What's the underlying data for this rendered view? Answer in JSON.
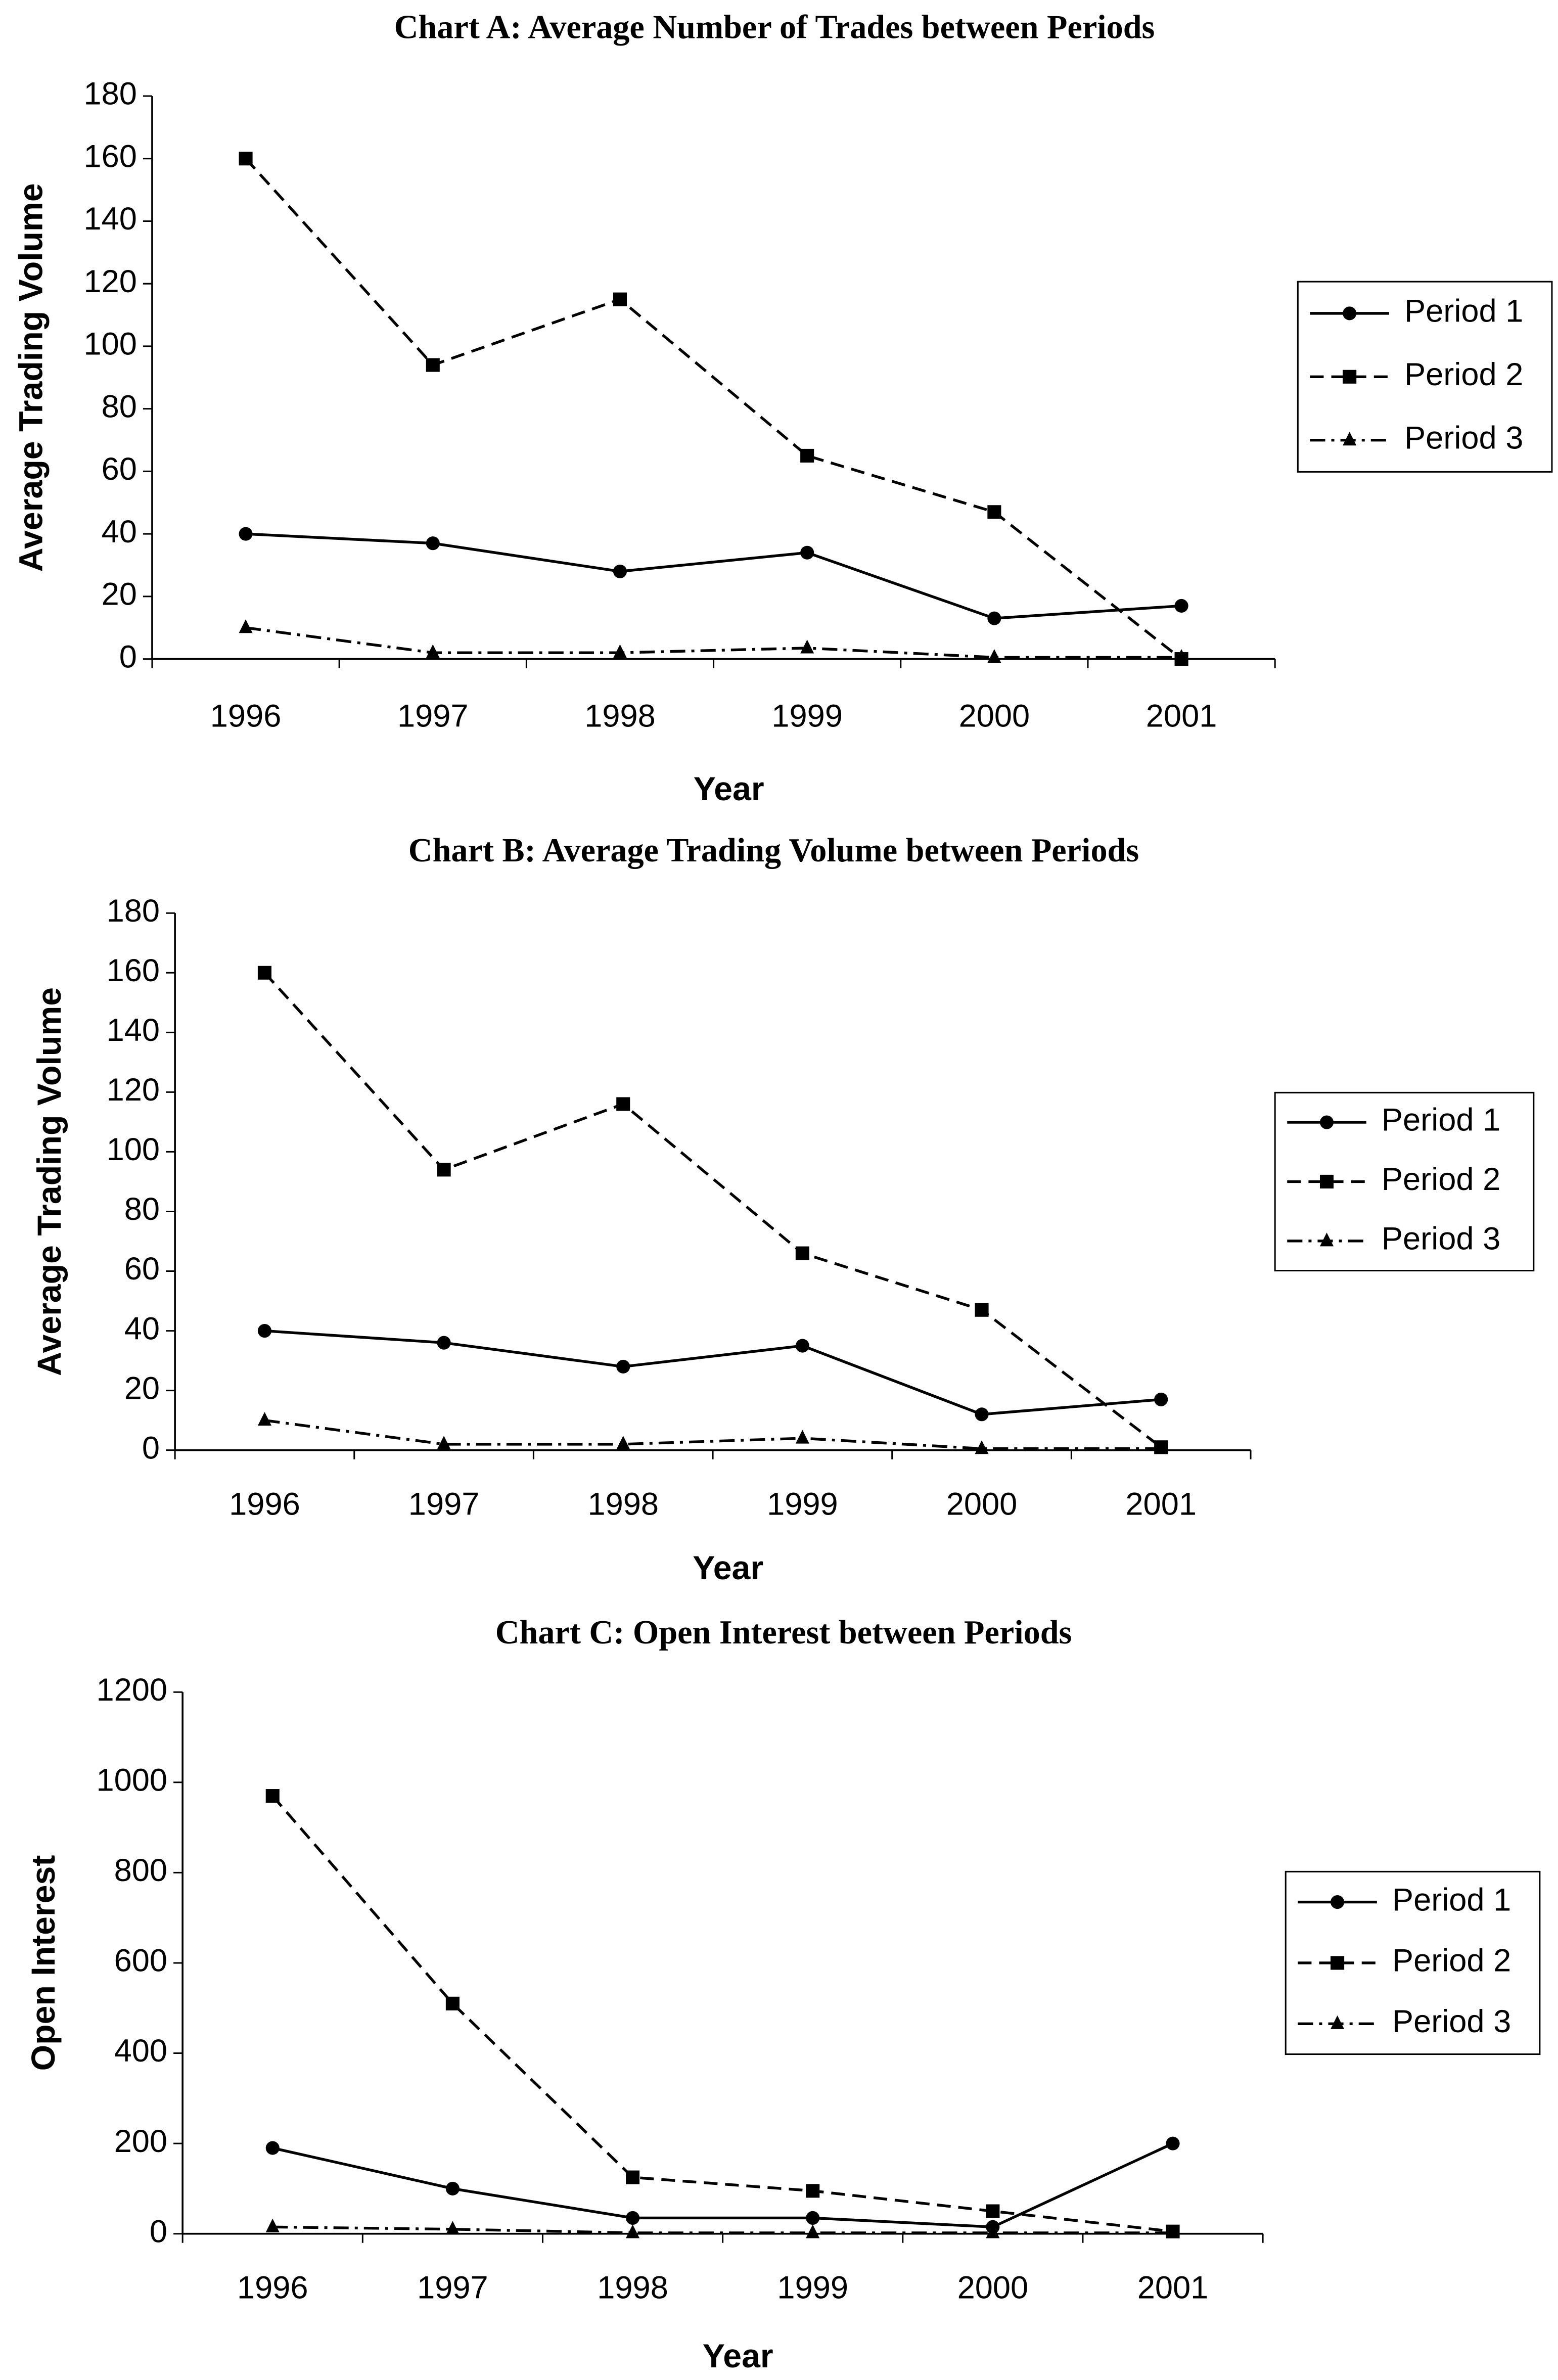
{
  "chart_data": [
    {
      "type": "line",
      "title": "Chart A: Average Number of Trades between Periods",
      "x_label": "Year",
      "y_label": "Average Trading Volume",
      "categories": [
        "1996",
        "1997",
        "1998",
        "1999",
        "2000",
        "2001"
      ],
      "series": [
        {
          "name": "Period 1",
          "color": "#000000",
          "line_style": "solid",
          "marker": "circle",
          "values": [
            40,
            37,
            28,
            34,
            13,
            17
          ]
        },
        {
          "name": "Period 2",
          "color": "#000000",
          "line_style": "dashed",
          "marker": "square",
          "values": [
            160,
            94,
            115,
            65,
            47,
            0
          ]
        },
        {
          "name": "Period 3",
          "color": "#000000",
          "line_style": "dashdot",
          "marker": "triangle",
          "values": [
            10,
            2,
            2,
            3.5,
            0.5,
            0.5
          ]
        }
      ],
      "ylim": [
        0,
        180
      ],
      "yticks": [
        0,
        20,
        40,
        60,
        80,
        100,
        120,
        140,
        160,
        180
      ],
      "legend": "right",
      "grid": false
    },
    {
      "type": "line",
      "title": "Chart B: Average Trading Volume between Periods",
      "x_label": "Year",
      "y_label": "Average Trading Volume",
      "categories": [
        "1996",
        "1997",
        "1998",
        "1999",
        "2000",
        "2001"
      ],
      "series": [
        {
          "name": "Period 1",
          "color": "#000000",
          "line_style": "solid",
          "marker": "circle",
          "values": [
            40,
            36,
            28,
            35,
            12,
            17
          ]
        },
        {
          "name": "Period 2",
          "color": "#000000",
          "line_style": "dashed",
          "marker": "square",
          "values": [
            160,
            94,
            116,
            66,
            47,
            1
          ]
        },
        {
          "name": "Period 3",
          "color": "#000000",
          "line_style": "dashdot",
          "marker": "triangle",
          "values": [
            10,
            2,
            2,
            4,
            0.5,
            0.5
          ]
        }
      ],
      "ylim": [
        0,
        180
      ],
      "yticks": [
        0,
        20,
        40,
        60,
        80,
        100,
        120,
        140,
        160,
        180
      ],
      "legend": "right",
      "grid": false
    },
    {
      "type": "line",
      "title": "Chart C: Open Interest between Periods",
      "x_label": "Year",
      "y_label": "Open Interest",
      "categories": [
        "1996",
        "1997",
        "1998",
        "1999",
        "2000",
        "2001"
      ],
      "series": [
        {
          "name": "Period 1",
          "color": "#000000",
          "line_style": "solid",
          "marker": "circle",
          "values": [
            190,
            100,
            35,
            35,
            15,
            200
          ]
        },
        {
          "name": "Period 2",
          "color": "#000000",
          "line_style": "dashed",
          "marker": "square",
          "values": [
            970,
            510,
            125,
            95,
            50,
            5
          ]
        },
        {
          "name": "Period 3",
          "color": "#000000",
          "line_style": "dashdot",
          "marker": "triangle",
          "values": [
            15,
            10,
            2,
            2,
            2,
            2
          ]
        }
      ],
      "ylim": [
        0,
        1200
      ],
      "yticks": [
        0,
        200,
        400,
        600,
        800,
        1000,
        1200
      ],
      "legend": "right",
      "grid": false
    }
  ]
}
